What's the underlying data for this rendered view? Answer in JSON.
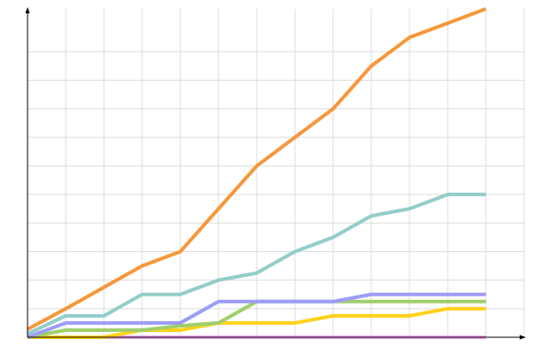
{
  "chart_data": {
    "type": "line",
    "x": [
      0,
      1,
      2,
      3,
      4,
      5,
      6,
      7,
      8,
      9,
      10,
      11,
      12
    ],
    "xlim": [
      0,
      13
    ],
    "xticks": [
      1,
      2,
      3,
      4,
      5,
      6,
      7,
      8,
      9,
      10,
      11,
      12,
      13
    ],
    "ylim": [
      0,
      11.5
    ],
    "yticks": [
      1,
      2,
      3,
      4,
      5,
      6,
      7,
      8,
      9,
      10
    ],
    "grid": true,
    "series": [
      {
        "color": "#f7a3ec",
        "values": [
          0,
          0,
          0,
          0,
          0,
          0,
          0,
          0,
          0,
          0,
          0,
          0,
          0
        ]
      },
      {
        "color": "#ffd11a",
        "values": [
          0,
          0,
          0,
          0.25,
          0.25,
          0.5,
          0.5,
          0.5,
          0.75,
          0.75,
          0.75,
          1,
          1
        ]
      },
      {
        "color": "#9fcf6a",
        "values": [
          0,
          0.25,
          0.25,
          0.25,
          0.4,
          0.5,
          1.25,
          1.25,
          1.25,
          1.25,
          1.25,
          1.25,
          1.25
        ]
      },
      {
        "color": "#9d9cf7",
        "values": [
          0,
          0.5,
          0.5,
          0.5,
          0.5,
          1.25,
          1.25,
          1.25,
          1.25,
          1.5,
          1.5,
          1.5,
          1.5
        ]
      },
      {
        "color": "#93cdc9",
        "values": [
          0.12,
          0.75,
          0.75,
          1.5,
          1.5,
          2,
          2.25,
          3,
          3.5,
          4.25,
          4.5,
          5,
          5
        ]
      },
      {
        "color": "#f7973a",
        "values": [
          0.28,
          1,
          1.75,
          2.5,
          3,
          4.5,
          6,
          7,
          8,
          9.5,
          10.5,
          11,
          11.5
        ]
      }
    ]
  }
}
